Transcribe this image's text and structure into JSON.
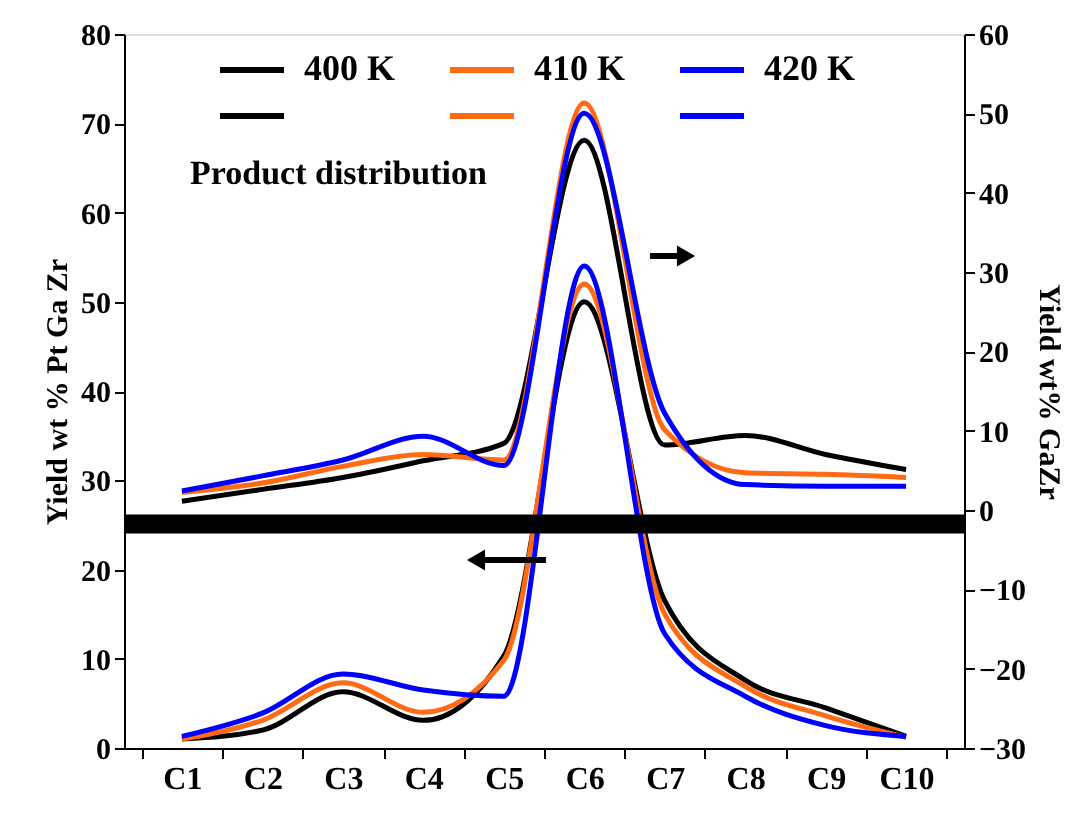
{
  "chart_data": {
    "type": "line",
    "categories": [
      "C1",
      "C2",
      "C3",
      "C4",
      "C5",
      "C6",
      "C7",
      "C8",
      "C9",
      "C10"
    ],
    "ylabel": "Yield wt % Pt Ga Zr",
    "y2label": "Yield wt% GaZr",
    "ylim": [
      0,
      80
    ],
    "yticks": [
      0,
      10,
      20,
      30,
      40,
      50,
      60,
      70,
      80
    ],
    "y2lim": [
      -30,
      60
    ],
    "y2ticks": [
      -30,
      -20,
      -10,
      0,
      10,
      20,
      30,
      40,
      50,
      60
    ],
    "series": [
      {
        "name": "400 K",
        "color": "#000000",
        "values": [
          1,
          2,
          6.3,
          3.1,
          10.3,
          50,
          16.5,
          7.6,
          4.5,
          1.3
        ]
      },
      {
        "name": "410 K",
        "color": "#ff6a13",
        "values": [
          1,
          3.1,
          7.3,
          4,
          9.8,
          52,
          15,
          6.9,
          3.6,
          1.2
        ]
      },
      {
        "name": "420 K",
        "color": "#0000ff",
        "values": [
          1.3,
          3.9,
          8.3,
          6.5,
          5.8,
          54,
          12.8,
          5.8,
          2.5,
          1.3
        ]
      },
      {
        "color": "#000000",
        "axis": "y2",
        "values": [
          1.1,
          2.6,
          4.1,
          6.2,
          8.4,
          46.6,
          8.2,
          9.4,
          7,
          5.1
        ]
      },
      {
        "color": "#ff6a13",
        "axis": "y2",
        "values": [
          2.2,
          3.4,
          5.5,
          7,
          6.3,
          51.3,
          10.1,
          4.7,
          4.5,
          4.1
        ]
      },
      {
        "color": "#0000ff",
        "axis": "y2",
        "values": [
          2.4,
          4.3,
          6.3,
          9.3,
          5.6,
          50,
          12.2,
          3.2,
          3,
          3
        ]
      }
    ],
    "ref_lines": [
      {
        "axis": "y",
        "value": 24.6,
        "color": "#000000"
      },
      {
        "axis": "y2",
        "value": -1.2,
        "color": "#000000"
      }
    ],
    "annotations": [
      "Product distribution"
    ],
    "legend": "top left",
    "grid": false,
    "marker": "none",
    "line_style": "solid"
  }
}
